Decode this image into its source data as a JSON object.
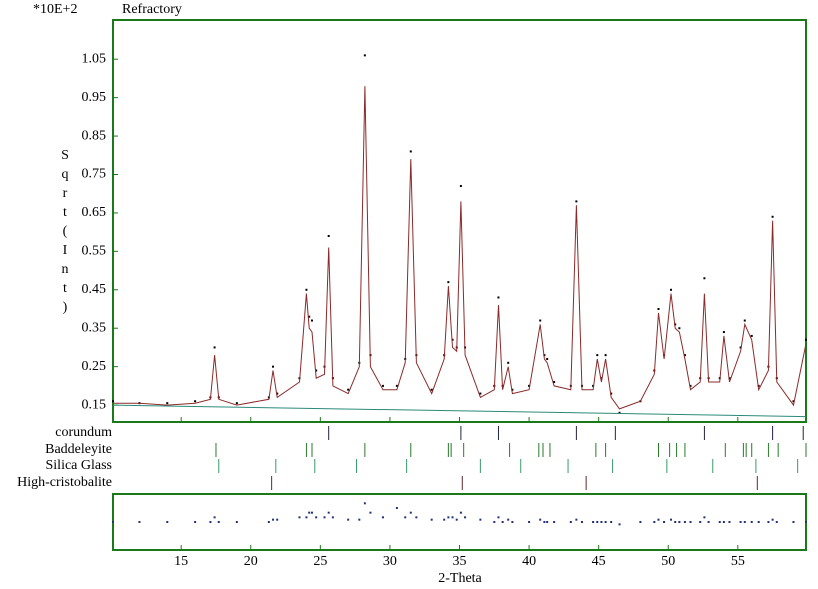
{
  "chart_data": {
    "type": "line",
    "scale_label": "*10E+2",
    "title": "Refractory",
    "y_label": "Sqrt(Int)",
    "x_label": "2-Theta",
    "xlim": [
      10.1,
      59.9
    ],
    "ylim": [
      0.106,
      1.152
    ],
    "xticks": [
      15,
      20,
      25,
      30,
      35,
      40,
      45,
      50,
      55
    ],
    "yticks": [
      0.15,
      0.25,
      0.35,
      0.45,
      0.55,
      0.65,
      0.75,
      0.85,
      0.95,
      1.05
    ],
    "x": [
      10.1,
      12,
      14,
      16,
      17.1,
      17.4,
      17.7,
      19,
      21.3,
      21.6,
      21.9,
      23.5,
      24.0,
      24.2,
      24.4,
      24.7,
      25.3,
      25.6,
      25.9,
      27.0,
      27.8,
      28.2,
      28.6,
      29.5,
      30.5,
      31.1,
      31.5,
      31.9,
      33.0,
      33.9,
      34.2,
      34.5,
      34.8,
      35.1,
      35.4,
      36.5,
      37.5,
      37.8,
      38.1,
      38.5,
      38.8,
      40.0,
      40.8,
      41.1,
      41.3,
      41.8,
      43.0,
      43.4,
      43.8,
      44.6,
      44.9,
      45.2,
      45.5,
      45.9,
      46.5,
      48.0,
      49.0,
      49.3,
      49.7,
      50.2,
      50.5,
      50.8,
      51.2,
      51.6,
      52.3,
      52.6,
      52.9,
      53.7,
      54.0,
      54.4,
      55.2,
      55.5,
      56.0,
      56.5,
      57.2,
      57.5,
      57.8,
      59.0,
      59.9
    ],
    "series": [
      {
        "style": "points",
        "color": "#000000",
        "values": [
          0.16,
          0.155,
          0.155,
          0.16,
          0.17,
          0.3,
          0.17,
          0.155,
          0.17,
          0.25,
          0.18,
          0.22,
          0.45,
          0.38,
          0.37,
          0.24,
          0.25,
          0.59,
          0.22,
          0.19,
          0.26,
          1.06,
          0.28,
          0.2,
          0.2,
          0.27,
          0.81,
          0.28,
          0.19,
          0.28,
          0.47,
          0.32,
          0.3,
          0.72,
          0.3,
          0.18,
          0.2,
          0.43,
          0.2,
          0.26,
          0.19,
          0.2,
          0.37,
          0.28,
          0.27,
          0.21,
          0.2,
          0.68,
          0.2,
          0.2,
          0.28,
          0.22,
          0.28,
          0.18,
          0.13,
          0.16,
          0.24,
          0.4,
          0.28,
          0.45,
          0.36,
          0.35,
          0.28,
          0.2,
          0.22,
          0.48,
          0.22,
          0.22,
          0.34,
          0.22,
          0.3,
          0.37,
          0.33,
          0.2,
          0.25,
          0.64,
          0.22,
          0.16,
          0.32
        ]
      },
      {
        "style": "line",
        "color": "#8b2a2a",
        "values": [
          0.155,
          0.155,
          0.15,
          0.155,
          0.165,
          0.28,
          0.165,
          0.15,
          0.165,
          0.24,
          0.17,
          0.21,
          0.44,
          0.35,
          0.34,
          0.22,
          0.23,
          0.56,
          0.2,
          0.18,
          0.25,
          0.98,
          0.25,
          0.19,
          0.19,
          0.26,
          0.79,
          0.26,
          0.18,
          0.27,
          0.46,
          0.3,
          0.29,
          0.68,
          0.28,
          0.17,
          0.19,
          0.41,
          0.19,
          0.25,
          0.18,
          0.19,
          0.36,
          0.27,
          0.26,
          0.2,
          0.19,
          0.67,
          0.19,
          0.19,
          0.27,
          0.21,
          0.27,
          0.17,
          0.14,
          0.16,
          0.23,
          0.39,
          0.27,
          0.44,
          0.35,
          0.34,
          0.27,
          0.19,
          0.21,
          0.44,
          0.21,
          0.21,
          0.33,
          0.21,
          0.29,
          0.36,
          0.32,
          0.19,
          0.24,
          0.63,
          0.21,
          0.15,
          0.31
        ]
      },
      {
        "style": "line",
        "color": "#2a8a7a",
        "x": [
          10.1,
          59.9
        ],
        "values": [
          0.15,
          0.12
        ]
      }
    ],
    "difference": {
      "color": "#22307a",
      "ylim": [
        -0.06,
        0.06
      ],
      "values": [
        0,
        0,
        0,
        0,
        0,
        0.01,
        0,
        0,
        0,
        0.005,
        0.005,
        0.01,
        0.01,
        0.02,
        0.02,
        0.01,
        0.01,
        0.02,
        0.01,
        0.005,
        0.005,
        0.04,
        0.02,
        0.01,
        0.03,
        0.01,
        0.02,
        0.01,
        0.005,
        0.005,
        0.01,
        0.01,
        0.005,
        0.02,
        0.01,
        0.005,
        0,
        0.01,
        0,
        0.005,
        0,
        0,
        0.005,
        0,
        0,
        0,
        0,
        0.005,
        0,
        0,
        0,
        0,
        0,
        0,
        -0.005,
        0,
        0,
        0.005,
        0,
        0.005,
        0,
        0,
        0,
        0,
        0,
        0.01,
        0,
        0,
        0,
        0,
        0,
        0,
        0,
        0,
        0,
        0.005,
        0,
        0,
        0
      ]
    },
    "phases": [
      {
        "name": "corundum",
        "color": "#1f2440",
        "positions": [
          25.6,
          35.1,
          37.8,
          43.4,
          46.2,
          52.6,
          57.5,
          59.7
        ]
      },
      {
        "name": "Baddeleyite",
        "color": "#2a7a2a",
        "positions": [
          17.5,
          24.0,
          24.4,
          28.2,
          31.5,
          34.2,
          34.4,
          35.3,
          38.6,
          40.7,
          41.0,
          41.5,
          44.8,
          45.5,
          49.3,
          50.1,
          50.6,
          51.2,
          54.1,
          55.4,
          55.6,
          56.0,
          57.2,
          57.9,
          59.9
        ]
      },
      {
        "name": "Silica Glass",
        "color": "#3a9a6a",
        "positions": [
          17.7,
          21.8,
          24.6,
          27.6,
          31.2,
          36.5,
          39.4,
          42.8,
          46.0,
          49.9,
          53.2,
          56.3,
          59.3
        ]
      },
      {
        "name": "High-cristobalite",
        "color": "#5a2a2a",
        "positions": [
          21.5,
          35.2,
          44.1,
          56.4
        ]
      }
    ]
  }
}
